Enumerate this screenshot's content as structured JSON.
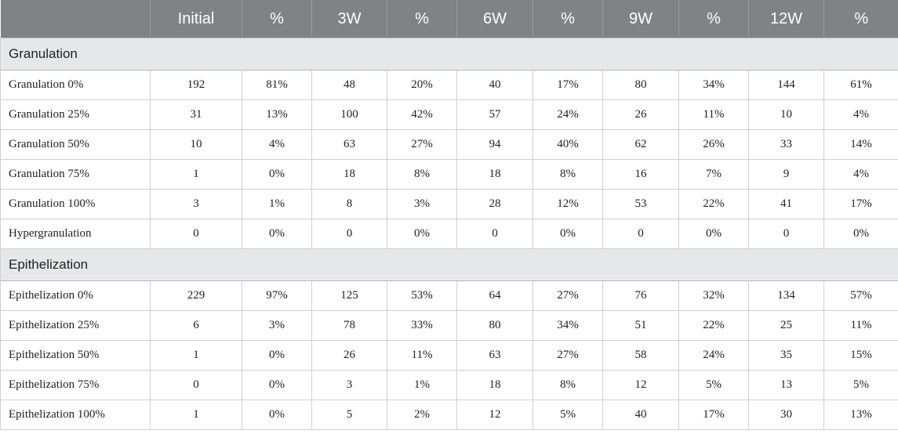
{
  "table": {
    "header": [
      "",
      "Initial",
      "%",
      "3W",
      "%",
      "6W",
      "%",
      "9W",
      "%",
      "12W",
      "%"
    ],
    "sections": [
      {
        "title": "Granulation",
        "rows": [
          [
            "Granulation 0%",
            "192",
            "81%",
            "48",
            "20%",
            "40",
            "17%",
            "80",
            "34%",
            "144",
            "61%"
          ],
          [
            "Granulation 25%",
            "31",
            "13%",
            "100",
            "42%",
            "57",
            "24%",
            "26",
            "11%",
            "10",
            "4%"
          ],
          [
            "Granulation 50%",
            "10",
            "4%",
            "63",
            "27%",
            "94",
            "40%",
            "62",
            "26%",
            "33",
            "14%"
          ],
          [
            "Granulation 75%",
            "1",
            "0%",
            "18",
            "8%",
            "18",
            "8%",
            "16",
            "7%",
            "9",
            "4%"
          ],
          [
            "Granulation 100%",
            "3",
            "1%",
            "8",
            "3%",
            "28",
            "12%",
            "53",
            "22%",
            "41",
            "17%"
          ],
          [
            "Hypergranulation",
            "0",
            "0%",
            "0",
            "0%",
            "0",
            "0%",
            "0",
            "0%",
            "0",
            "0%"
          ]
        ]
      },
      {
        "title": "Epithelization",
        "rows": [
          [
            "Epithelization 0%",
            "229",
            "97%",
            "125",
            "53%",
            "64",
            "27%",
            "76",
            "32%",
            "134",
            "57%"
          ],
          [
            "Epithelization 25%",
            "6",
            "3%",
            "78",
            "33%",
            "80",
            "34%",
            "51",
            "22%",
            "25",
            "11%"
          ],
          [
            "Epithelization 50%",
            "1",
            "0%",
            "26",
            "11%",
            "63",
            "27%",
            "58",
            "24%",
            "35",
            "15%"
          ],
          [
            "Epithelization 75%",
            "0",
            "0%",
            "3",
            "1%",
            "18",
            "8%",
            "12",
            "5%",
            "13",
            "5%"
          ],
          [
            "Epithelization 100%",
            "1",
            "0%",
            "5",
            "2%",
            "12",
            "5%",
            "40",
            "17%",
            "30",
            "13%"
          ]
        ]
      }
    ]
  }
}
